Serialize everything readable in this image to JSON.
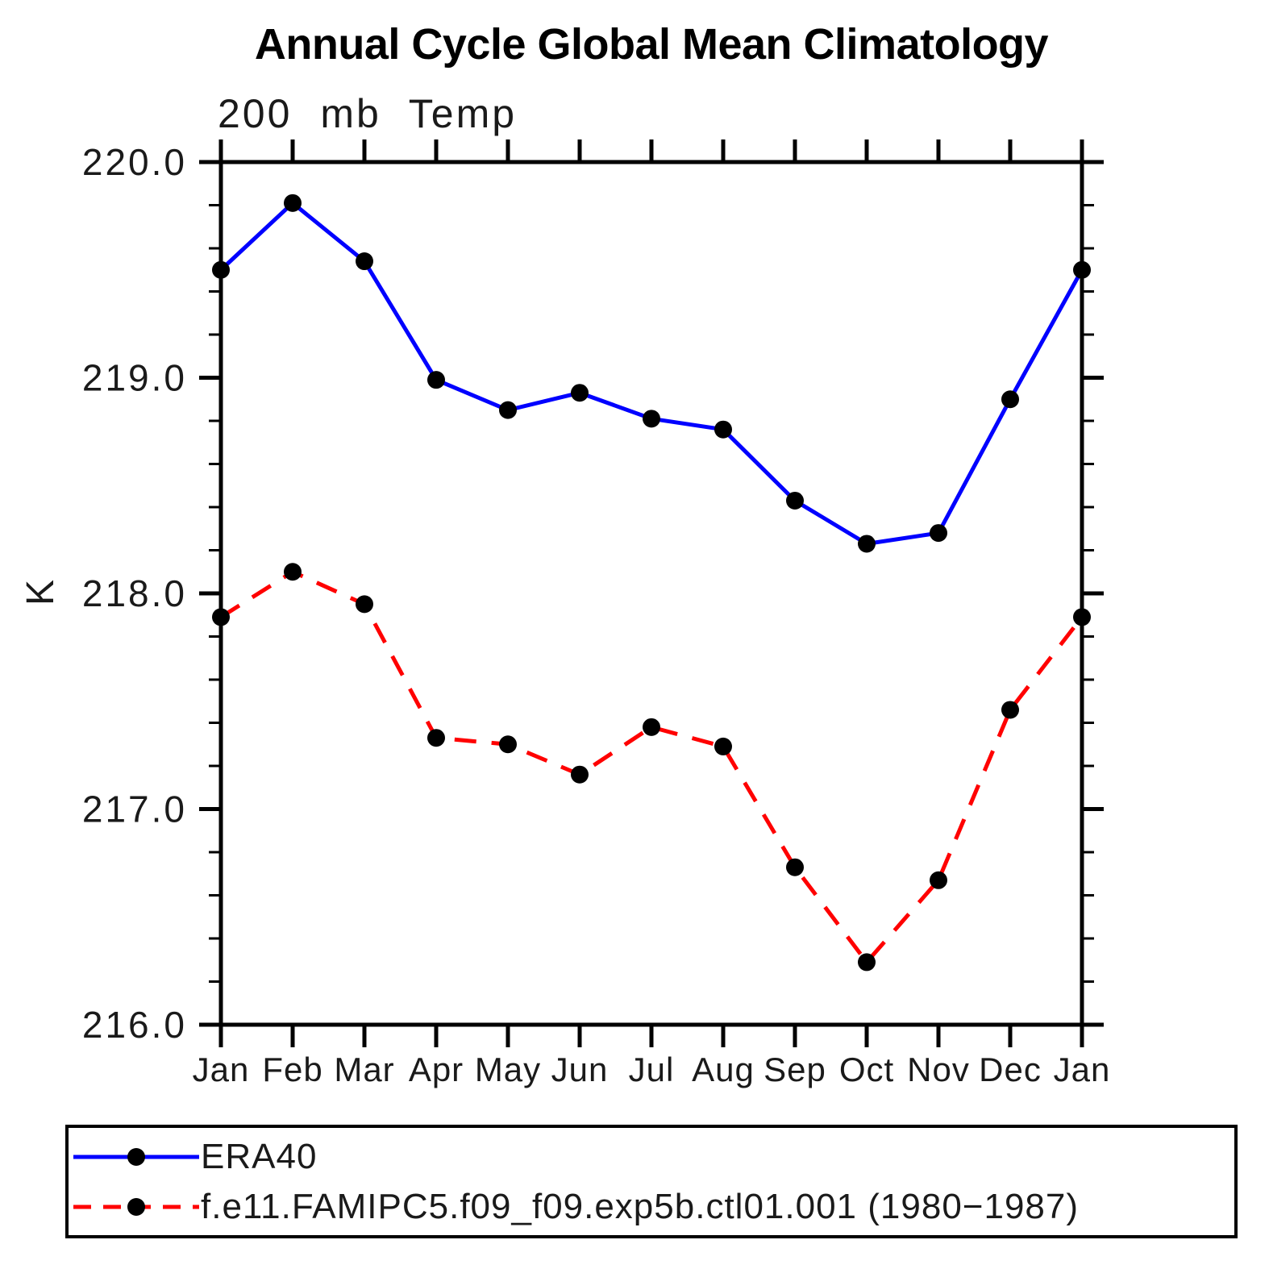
{
  "title": "Annual Cycle Global Mean Climatology",
  "subtitle": "200 mb Temp",
  "ylabel": "K",
  "axis_color": "#000000",
  "chart_data": {
    "type": "line",
    "x_categories": [
      "Jan",
      "Feb",
      "Mar",
      "Apr",
      "May",
      "Jun",
      "Jul",
      "Aug",
      "Sep",
      "Oct",
      "Nov",
      "Dec",
      "Jan"
    ],
    "xlabel": "",
    "ylabel": "K",
    "ylim": [
      216.0,
      220.0
    ],
    "ytick_labels": [
      "216.0",
      "217.0",
      "218.0",
      "219.0",
      "220.0"
    ],
    "ytick_values": [
      216.0,
      217.0,
      218.0,
      219.0,
      220.0
    ],
    "y_minor_step": 0.2,
    "grid": false,
    "legend_position": "bottom",
    "marker_color": "#000000",
    "series": [
      {
        "name": "ERA40",
        "color": "#0000ff",
        "style": "solid",
        "values": [
          219.5,
          219.81,
          219.54,
          218.99,
          218.85,
          218.93,
          218.81,
          218.76,
          218.43,
          218.23,
          218.28,
          218.9,
          219.5
        ]
      },
      {
        "name": "f.e11.FAMIPC5.f09_f09.exp5b.ctl01.001 (1980−1987)",
        "color": "#ff0000",
        "style": "dashed",
        "values": [
          217.89,
          218.1,
          217.95,
          217.33,
          217.3,
          217.16,
          217.38,
          217.29,
          216.73,
          216.29,
          216.67,
          217.46,
          217.89
        ]
      }
    ]
  }
}
